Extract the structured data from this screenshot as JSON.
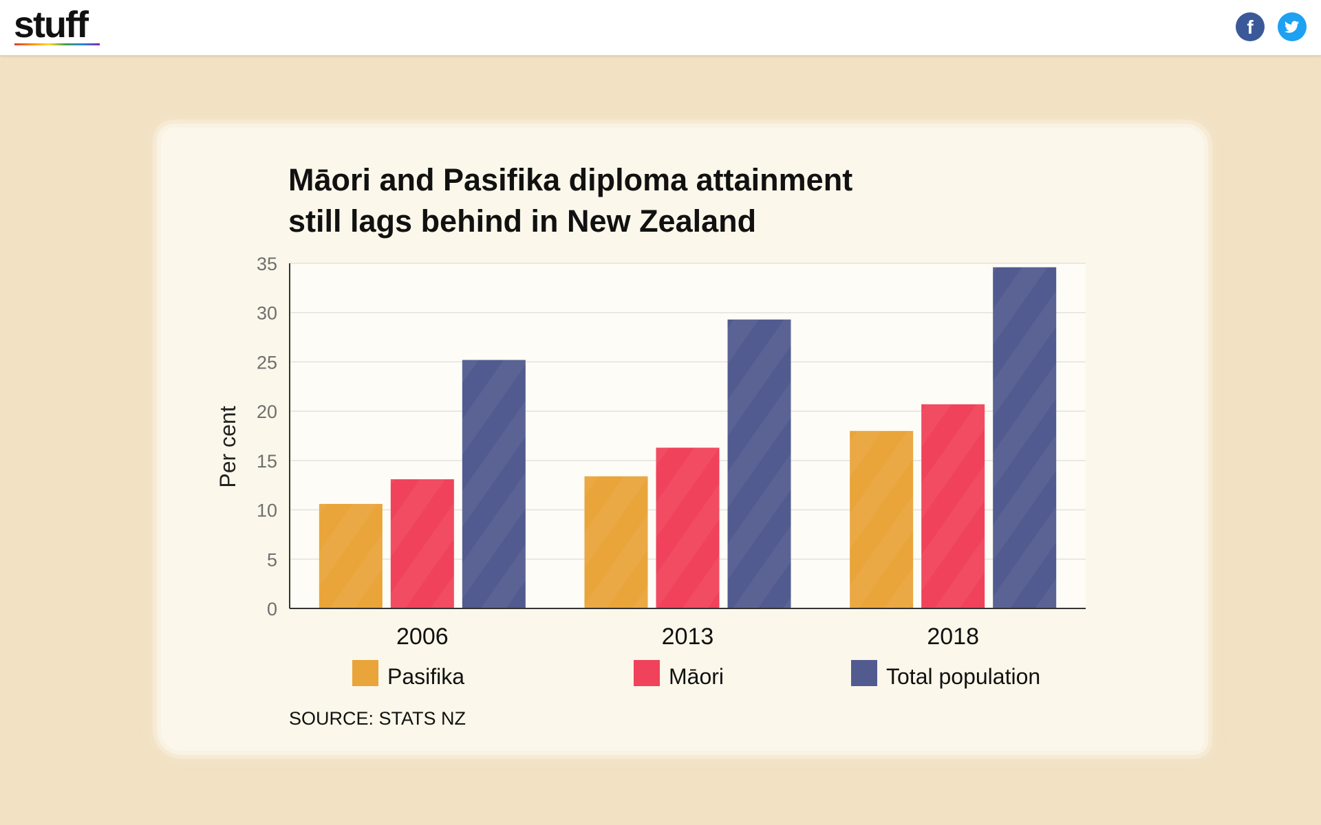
{
  "header": {
    "logo_text": "stuff",
    "social": [
      {
        "name": "facebook",
        "icon": "facebook-icon",
        "glyph": "f",
        "color": "#3b5998"
      },
      {
        "name": "twitter",
        "icon": "twitter-icon",
        "color": "#1da1f2"
      }
    ]
  },
  "source": "SOURCE: STATS NZ",
  "chart_data": {
    "type": "bar",
    "title": "Māori and Pasifika diploma attainment still lags behind in New Zealand",
    "title_lines": [
      "Māori and Pasifika diploma attainment",
      "still lags behind in New Zealand"
    ],
    "xlabel": "",
    "ylabel": "Per cent",
    "ylim": [
      0,
      35
    ],
    "yticks": [
      0,
      5,
      10,
      15,
      20,
      25,
      30,
      35
    ],
    "categories": [
      "2006",
      "2013",
      "2018"
    ],
    "series": [
      {
        "name": "Pasifika",
        "color": "#e9a43a",
        "values": [
          10.6,
          13.4,
          18.0
        ]
      },
      {
        "name": "Māori",
        "color": "#f0425a",
        "values": [
          13.1,
          16.3,
          20.7
        ]
      },
      {
        "name": "Total population",
        "color": "#525b8f",
        "values": [
          25.2,
          29.3,
          34.6
        ]
      }
    ],
    "grid": true,
    "legend": "bottom"
  }
}
